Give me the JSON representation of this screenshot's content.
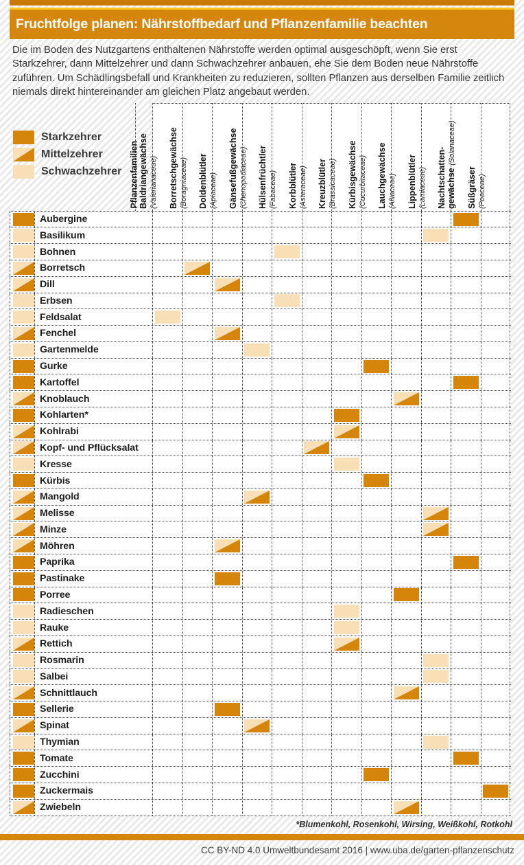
{
  "title": "Fruchtfolge planen: Nährstoffbedarf und Pflanzenfamilie beachten",
  "intro": "Die im Boden des Nutzgartens enthaltenen Nährstoffe werden optimal ausgeschöpft, wenn Sie erst Starkzehrer, dann Mittelzehrer und dann Schwachzehrer anbauen, ehe Sie dem Boden neue Nährstoffe zuführen. Um Schädlingsbefall und Krankheiten zu reduzieren, sollten Pflanzen aus derselben Familie zeitlich niemals direkt hintereinander am gleichen Platz angebaut werden.",
  "legend": [
    {
      "level": "stark",
      "label": "Starkzehrer"
    },
    {
      "level": "mittel",
      "label": "Mittelzehrer"
    },
    {
      "level": "schwach",
      "label": "Schwachzehrer"
    }
  ],
  "families_axis_label": "Pflanzenfamilien",
  "families": [
    {
      "name": "Baldriangewächse",
      "name2": "",
      "latin": "(Valerianaceae)"
    },
    {
      "name": "Borretschgewächse",
      "name2": "",
      "latin": "(Boragniaceae)"
    },
    {
      "name": "Doldenblütler",
      "name2": "",
      "latin": "(Apiaceae)"
    },
    {
      "name": "Gänsefußgewächse",
      "name2": "",
      "latin": "(Chenopodiaceae)"
    },
    {
      "name": "Hülsenfrüchtler",
      "name2": "",
      "latin": "(Fabaceae)"
    },
    {
      "name": "Korbblütler",
      "name2": "",
      "latin": "(Asteraceae)"
    },
    {
      "name": "Kreuzblütler",
      "name2": "",
      "latin": "(Brassicaceae)"
    },
    {
      "name": "Kürbisgewächse",
      "name2": "",
      "latin": "(Cucurbitaceae)"
    },
    {
      "name": "Lauchgewächse",
      "name2": "",
      "latin": "(Alliaceae)"
    },
    {
      "name": "Lippenblütler",
      "name2": "",
      "latin": "(Lamiaceae)"
    },
    {
      "name": "Nachtschatten-",
      "name2": "gewächse",
      "latin": "(Solanaceae)"
    },
    {
      "name": "Süßgräser",
      "name2": "",
      "latin": "(Poaceae)"
    }
  ],
  "plants": [
    {
      "name": "Aubergine",
      "level": "stark",
      "family": 10
    },
    {
      "name": "Basilikum",
      "level": "schwach",
      "family": 9
    },
    {
      "name": "Bohnen",
      "level": "schwach",
      "family": 4
    },
    {
      "name": "Borretsch",
      "level": "mittel",
      "family": 1
    },
    {
      "name": "Dill",
      "level": "mittel",
      "family": 2
    },
    {
      "name": "Erbsen",
      "level": "schwach",
      "family": 4
    },
    {
      "name": "Feldsalat",
      "level": "schwach",
      "family": 0
    },
    {
      "name": "Fenchel",
      "level": "mittel",
      "family": 2
    },
    {
      "name": "Gartenmelde",
      "level": "schwach",
      "family": 3
    },
    {
      "name": "Gurke",
      "level": "stark",
      "family": 7
    },
    {
      "name": "Kartoffel",
      "level": "stark",
      "family": 10
    },
    {
      "name": "Knoblauch",
      "level": "mittel",
      "family": 8
    },
    {
      "name": "Kohlarten*",
      "level": "stark",
      "family": 6
    },
    {
      "name": "Kohlrabi",
      "level": "mittel",
      "family": 6
    },
    {
      "name": "Kopf- und Pflücksalat",
      "level": "mittel",
      "family": 5
    },
    {
      "name": "Kresse",
      "level": "schwach",
      "family": 6
    },
    {
      "name": "Kürbis",
      "level": "stark",
      "family": 7
    },
    {
      "name": "Mangold",
      "level": "mittel",
      "family": 3
    },
    {
      "name": "Melisse",
      "level": "mittel",
      "family": 9
    },
    {
      "name": "Minze",
      "level": "mittel",
      "family": 9
    },
    {
      "name": "Möhren",
      "level": "mittel",
      "family": 2
    },
    {
      "name": "Paprika",
      "level": "stark",
      "family": 10
    },
    {
      "name": "Pastinake",
      "level": "stark",
      "family": 2
    },
    {
      "name": "Porree",
      "level": "stark",
      "family": 8
    },
    {
      "name": "Radieschen",
      "level": "schwach",
      "family": 6
    },
    {
      "name": "Rauke",
      "level": "schwach",
      "family": 6
    },
    {
      "name": "Rettich",
      "level": "mittel",
      "family": 6
    },
    {
      "name": "Rosmarin",
      "level": "schwach",
      "family": 9
    },
    {
      "name": "Salbei",
      "level": "schwach",
      "family": 9
    },
    {
      "name": "Schnittlauch",
      "level": "mittel",
      "family": 8
    },
    {
      "name": "Sellerie",
      "level": "stark",
      "family": 2
    },
    {
      "name": "Spinat",
      "level": "mittel",
      "family": 3
    },
    {
      "name": "Thymian",
      "level": "schwach",
      "family": 9
    },
    {
      "name": "Tomate",
      "level": "stark",
      "family": 10
    },
    {
      "name": "Zucchini",
      "level": "stark",
      "family": 7
    },
    {
      "name": "Zuckermais",
      "level": "stark",
      "family": 11
    },
    {
      "name": "Zwiebeln",
      "level": "mittel",
      "family": 8
    }
  ],
  "footnote": "*Blumenkohl, Rosenkohl, Wirsing, Weißkohl, Rotkohl",
  "credit": "CC BY-ND 4.0 Umweltbundesamt 2016 | www.uba.de/garten-pflanzenschutz",
  "colors": {
    "accent_orange": "#D5860C",
    "top_strip_orange": "#C97A04",
    "highlight_yellow": "#FFC42A",
    "starkzehrer_orange": "#D6850B",
    "schwachzehrer_beige": "#F8DFB6"
  }
}
